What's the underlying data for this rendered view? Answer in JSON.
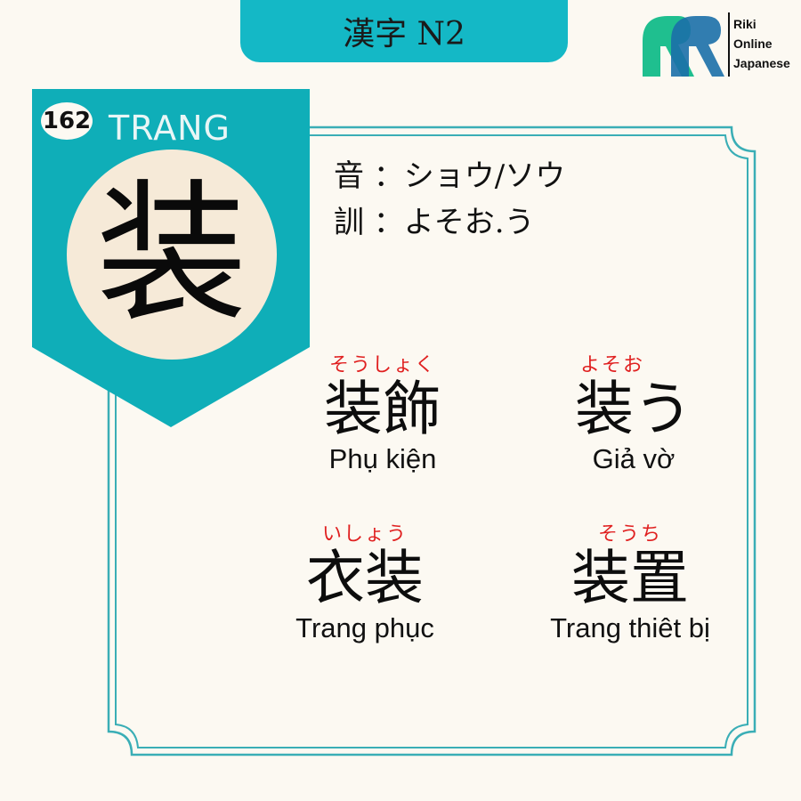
{
  "header": {
    "title": "漢字 N2"
  },
  "logo": {
    "line1": "Riki",
    "line2": "Online",
    "line3": "Japanese",
    "colors": [
      "#1fbf8f",
      "#1f9ed0",
      "#1b6fa8"
    ]
  },
  "kanji": {
    "number": "162",
    "hanviet": "TRANG",
    "character": "装"
  },
  "readings": {
    "on": "音 ：ショウ/ソウ",
    "kun": "訓 ：よそお.う"
  },
  "vocab": [
    {
      "furigana": "そうしょく",
      "word": "装飾",
      "meaning": "Phụ kiện"
    },
    {
      "furigana": "よそお",
      "word": "装う",
      "meaning": "Giả vờ"
    },
    {
      "furigana": "いしょう",
      "word": "衣装",
      "meaning": "Trang phục"
    },
    {
      "furigana": "そうち",
      "word": "装置",
      "meaning": "Trang thiêt bị"
    }
  ],
  "colors": {
    "teal": "#14b8c6",
    "badge": "#0faeb8",
    "frame": "#3aaeb6",
    "furigana": "#e02020",
    "background": "#fcf9f2"
  }
}
